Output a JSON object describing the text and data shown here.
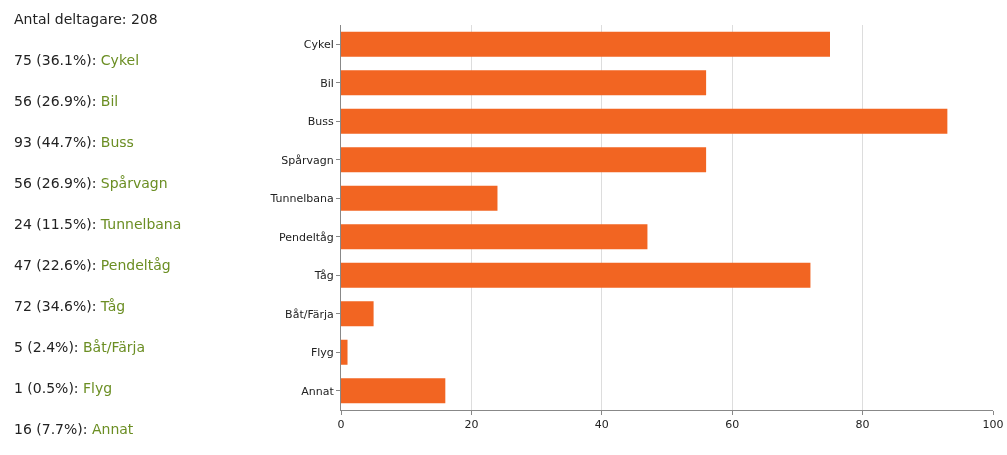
{
  "chart_data": {
    "type": "bar",
    "orientation": "horizontal",
    "annotations": [
      "Antal deltagare: 208",
      "75 (36.1%): Cykel",
      "56 (26.9%): Bil",
      "93 (44.7%): Buss",
      "56 (26.9%): Spårvagn",
      "24 (11.5%): Tunnelbana",
      "47 (22.6%): Pendeltåg",
      "72 (34.6%): Tåg",
      "5 (2.4%): Båt/Färja",
      "1 (0.5%): Flyg",
      "16 (7.7%): Annat"
    ],
    "categories": [
      "Cykel",
      "Bil",
      "Buss",
      "Spårvagn",
      "Tunnelbana",
      "Pendeltåg",
      "Tåg",
      "Båt/Färja",
      "Flyg",
      "Annat"
    ],
    "values": [
      75,
      56,
      93,
      56,
      24,
      47,
      72,
      5,
      1,
      16
    ],
    "color": "#f26522",
    "xlim": [
      0,
      100
    ],
    "xticks": [
      0,
      20,
      40,
      60,
      80,
      100
    ],
    "grid": "x"
  }
}
